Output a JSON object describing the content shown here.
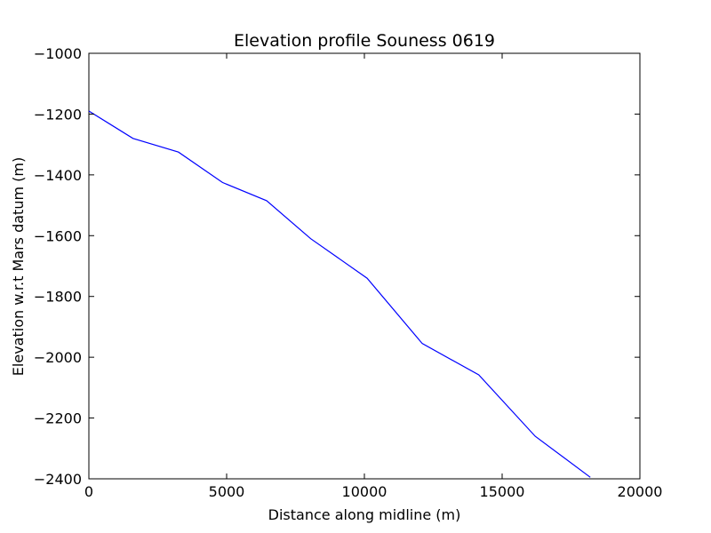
{
  "chart_data": {
    "type": "line",
    "title": "Elevation profile Souness 0619",
    "xlabel": "Distance along midline (m)",
    "ylabel": "Elevation w.r.t Mars datum (m)",
    "xlim": [
      0,
      20000
    ],
    "ylim": [
      -2400,
      -1000
    ],
    "xticks": [
      0,
      5000,
      10000,
      15000,
      20000
    ],
    "xtick_labels": [
      "0",
      "5000",
      "10000",
      "15000",
      "20000"
    ],
    "yticks": [
      -1000,
      -1200,
      -1400,
      -1600,
      -1800,
      -2000,
      -2200,
      -2400
    ],
    "ytick_labels": [
      "−1000",
      "−1200",
      "−1400",
      "−1600",
      "−1800",
      "−2000",
      "−2200",
      "−2400"
    ],
    "grid": false,
    "series": [
      {
        "color": "#0000ff",
        "x": [
          0,
          1600,
          3250,
          4850,
          6450,
          8050,
          10100,
          12100,
          14150,
          16200,
          18200
        ],
        "y": [
          -1190,
          -1280,
          -1325,
          -1425,
          -1485,
          -1610,
          -1740,
          -1955,
          -2058,
          -2260,
          -2395
        ]
      }
    ]
  }
}
